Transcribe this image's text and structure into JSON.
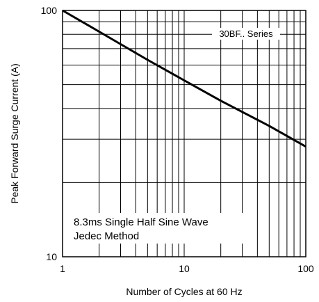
{
  "chart_data": {
    "type": "line",
    "xlabel": "Number of Cycles at 60 Hz",
    "ylabel": "Peak Forward Surge Current (A)",
    "xscale": "log",
    "yscale": "log",
    "xlim": [
      1,
      100
    ],
    "ylim": [
      10,
      100
    ],
    "xticks": [
      "1",
      "10",
      "100"
    ],
    "yticks": [
      "10",
      "100"
    ],
    "grid": true,
    "series": [
      {
        "name": "30BF.. Series",
        "x": [
          1,
          2,
          5,
          10,
          20,
          50,
          100
        ],
        "y": [
          100,
          82,
          63,
          52,
          43,
          34,
          28
        ]
      }
    ],
    "annotations": [
      "8.3ms Single Half Sine Wave",
      "Jedec Method"
    ]
  }
}
